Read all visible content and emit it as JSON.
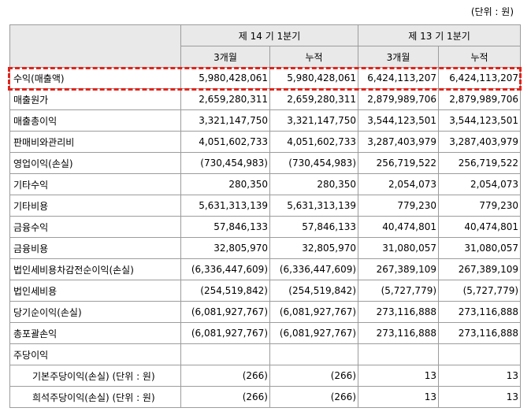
{
  "unit_note": "(단위 : 원)",
  "header": {
    "period1": "제 14 기 1분기",
    "period2": "제 13 기 1분기",
    "col_3m": "3개월",
    "col_cum": "누적"
  },
  "rows": [
    {
      "label": "수익(매출액)",
      "v": [
        "5,980,428,061",
        "5,980,428,061",
        "6,424,113,207",
        "6,424,113,207"
      ]
    },
    {
      "label": "매출원가",
      "v": [
        "2,659,280,311",
        "2,659,280,311",
        "2,879,989,706",
        "2,879,989,706"
      ]
    },
    {
      "label": "매출총이익",
      "v": [
        "3,321,147,750",
        "3,321,147,750",
        "3,544,123,501",
        "3,544,123,501"
      ]
    },
    {
      "label": "판매비와관리비",
      "v": [
        "4,051,602,733",
        "4,051,602,733",
        "3,287,403,979",
        "3,287,403,979"
      ]
    },
    {
      "label": "영업이익(손실)",
      "v": [
        "(730,454,983)",
        "(730,454,983)",
        "256,719,522",
        "256,719,522"
      ]
    },
    {
      "label": "기타수익",
      "v": [
        "280,350",
        "280,350",
        "2,054,073",
        "2,054,073"
      ]
    },
    {
      "label": "기타비용",
      "v": [
        "5,631,313,139",
        "5,631,313,139",
        "779,230",
        "779,230"
      ]
    },
    {
      "label": "금융수익",
      "v": [
        "57,846,133",
        "57,846,133",
        "40,474,801",
        "40,474,801"
      ]
    },
    {
      "label": "금융비용",
      "v": [
        "32,805,970",
        "32,805,970",
        "31,080,057",
        "31,080,057"
      ]
    },
    {
      "label": "법인세비용차감전순이익(손실)",
      "v": [
        "(6,336,447,609)",
        "(6,336,447,609)",
        "267,389,109",
        "267,389,109"
      ]
    },
    {
      "label": "법인세비용",
      "v": [
        "(254,519,842)",
        "(254,519,842)",
        "(5,727,779)",
        "(5,727,779)"
      ]
    },
    {
      "label": "당기순이익(손실)",
      "v": [
        "(6,081,927,767)",
        "(6,081,927,767)",
        "273,116,888",
        "273,116,888"
      ]
    },
    {
      "label": "총포괄손익",
      "v": [
        "(6,081,927,767)",
        "(6,081,927,767)",
        "273,116,888",
        "273,116,888"
      ]
    },
    {
      "label": "주당이익",
      "v": [
        "",
        "",
        "",
        ""
      ]
    },
    {
      "label": "기본주당이익(손실) (단위 : 원)",
      "v": [
        "(266)",
        "(266)",
        "13",
        "13"
      ],
      "sub": true
    },
    {
      "label": "희석주당이익(손실) (단위 : 원)",
      "v": [
        "(266)",
        "(266)",
        "13",
        "13"
      ],
      "sub": true
    }
  ]
}
